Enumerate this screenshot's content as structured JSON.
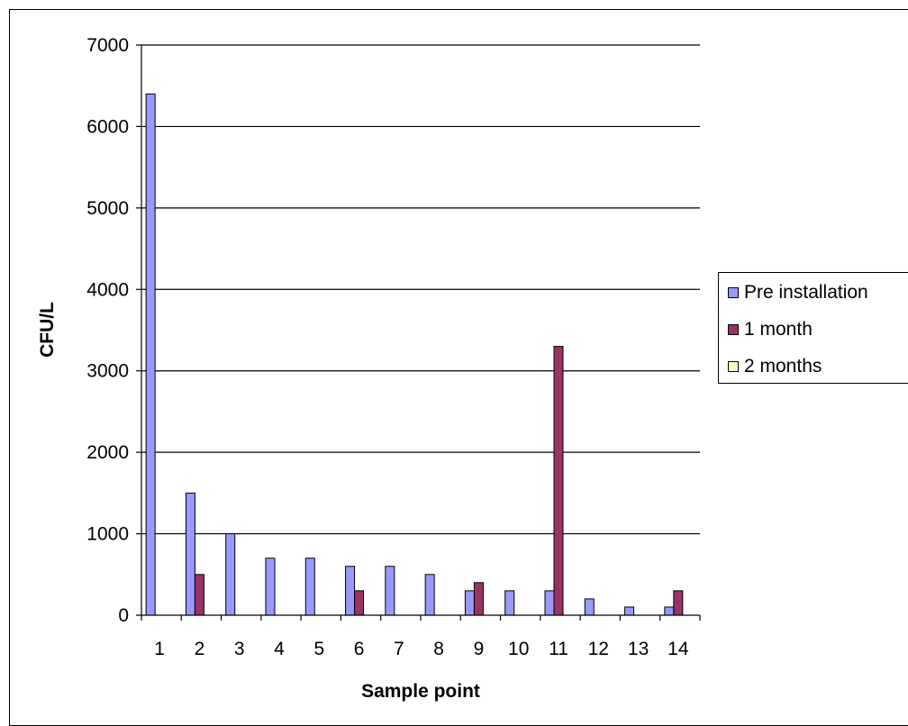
{
  "chart_data": {
    "type": "bar",
    "xlabel": "Sample point",
    "ylabel": "CFU/L",
    "ylim": [
      0,
      7000
    ],
    "yticks": [
      0,
      1000,
      2000,
      3000,
      4000,
      5000,
      6000,
      7000
    ],
    "grid": true,
    "legend_position": "right",
    "categories": [
      "1",
      "2",
      "3",
      "4",
      "5",
      "6",
      "7",
      "8",
      "9",
      "10",
      "11",
      "12",
      "13",
      "14"
    ],
    "series": [
      {
        "name": "Pre installation",
        "color": "#9999ff",
        "values": [
          6400,
          1500,
          1000,
          700,
          700,
          600,
          600,
          500,
          300,
          300,
          300,
          200,
          100,
          100
        ]
      },
      {
        "name": "1 month",
        "color": "#993366",
        "values": [
          0,
          500,
          0,
          0,
          0,
          300,
          0,
          0,
          400,
          0,
          3300,
          0,
          0,
          300
        ]
      },
      {
        "name": "2 months",
        "color": "#ffffcc",
        "values": [
          0,
          0,
          0,
          0,
          0,
          0,
          0,
          0,
          0,
          0,
          0,
          0,
          0,
          0
        ]
      }
    ]
  }
}
